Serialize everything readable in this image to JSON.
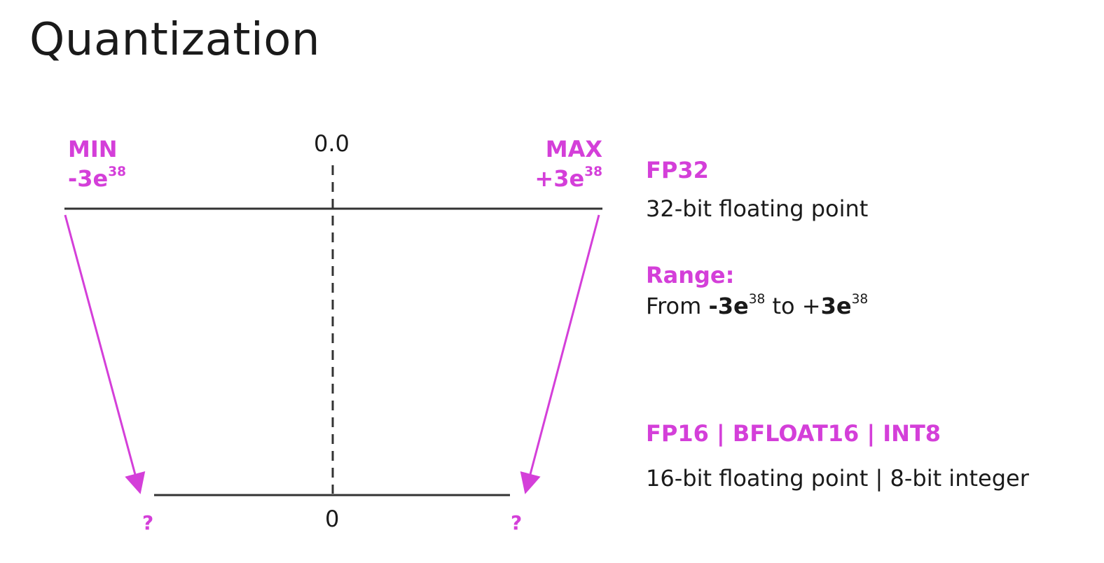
{
  "title": "Quantization",
  "colors": {
    "accent": "#d43fd9",
    "line": "#333333"
  },
  "fp32_axis": {
    "zero_label": "0.0",
    "min": {
      "label": "MIN",
      "base": "-3e",
      "exp": "38"
    },
    "max": {
      "label": "MAX",
      "base": "+3e",
      "exp": "38"
    }
  },
  "low_axis": {
    "zero_label": "0",
    "left_unknown": "?",
    "right_unknown": "?"
  },
  "info": {
    "fp32_heading": "FP32",
    "fp32_desc": "32-bit floating point",
    "range_heading": "Range:",
    "range": {
      "from_word": "From",
      "low_base": "-3e",
      "low_exp": "38",
      "to_word": "to",
      "high_sign": "+",
      "high_base": "3e",
      "high_exp": "38"
    },
    "low_heading": "FP16 | BFLOAT16 | INT8",
    "low_desc": "16-bit floating point | 8-bit integer"
  }
}
